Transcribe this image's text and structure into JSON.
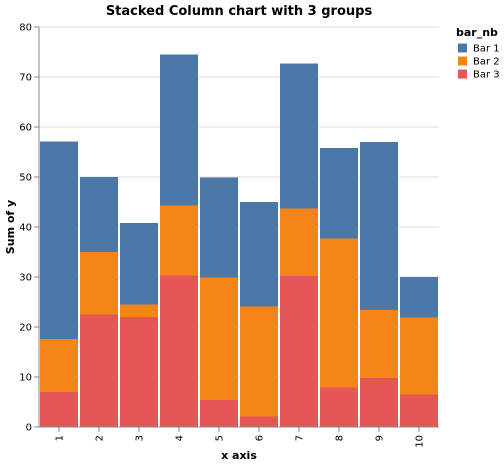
{
  "chart_data": {
    "type": "bar",
    "stacked": true,
    "title": "Stacked Column chart with 3 groups",
    "xlabel": "x axis",
    "ylabel": "Sum of y",
    "categories": [
      "1",
      "2",
      "3",
      "4",
      "5",
      "6",
      "7",
      "8",
      "9",
      "10"
    ],
    "ylim": [
      0,
      80
    ],
    "yticks": [
      "0",
      "10",
      "20",
      "30",
      "40",
      "50",
      "60",
      "70",
      "80"
    ],
    "grid": true,
    "legend": {
      "title": "bar_nb",
      "position": "top-right"
    },
    "stack_order": [
      "Bar 3",
      "Bar 2",
      "Bar 1"
    ],
    "series": [
      {
        "name": "Bar 1",
        "color": "#4c78a8",
        "values": [
          39.5,
          15,
          16.3,
          30.2,
          20,
          20.9,
          29,
          18.1,
          33.6,
          8.1
        ]
      },
      {
        "name": "Bar 2",
        "color": "#f58518",
        "values": [
          10.6,
          12.5,
          2.5,
          14,
          24.5,
          22,
          13.5,
          29.8,
          13.6,
          15.4
        ]
      },
      {
        "name": "Bar 3",
        "color": "#e45756",
        "values": [
          7,
          22.5,
          22,
          30.3,
          5.4,
          2.1,
          30.2,
          7.9,
          9.8,
          6.5
        ]
      }
    ]
  }
}
